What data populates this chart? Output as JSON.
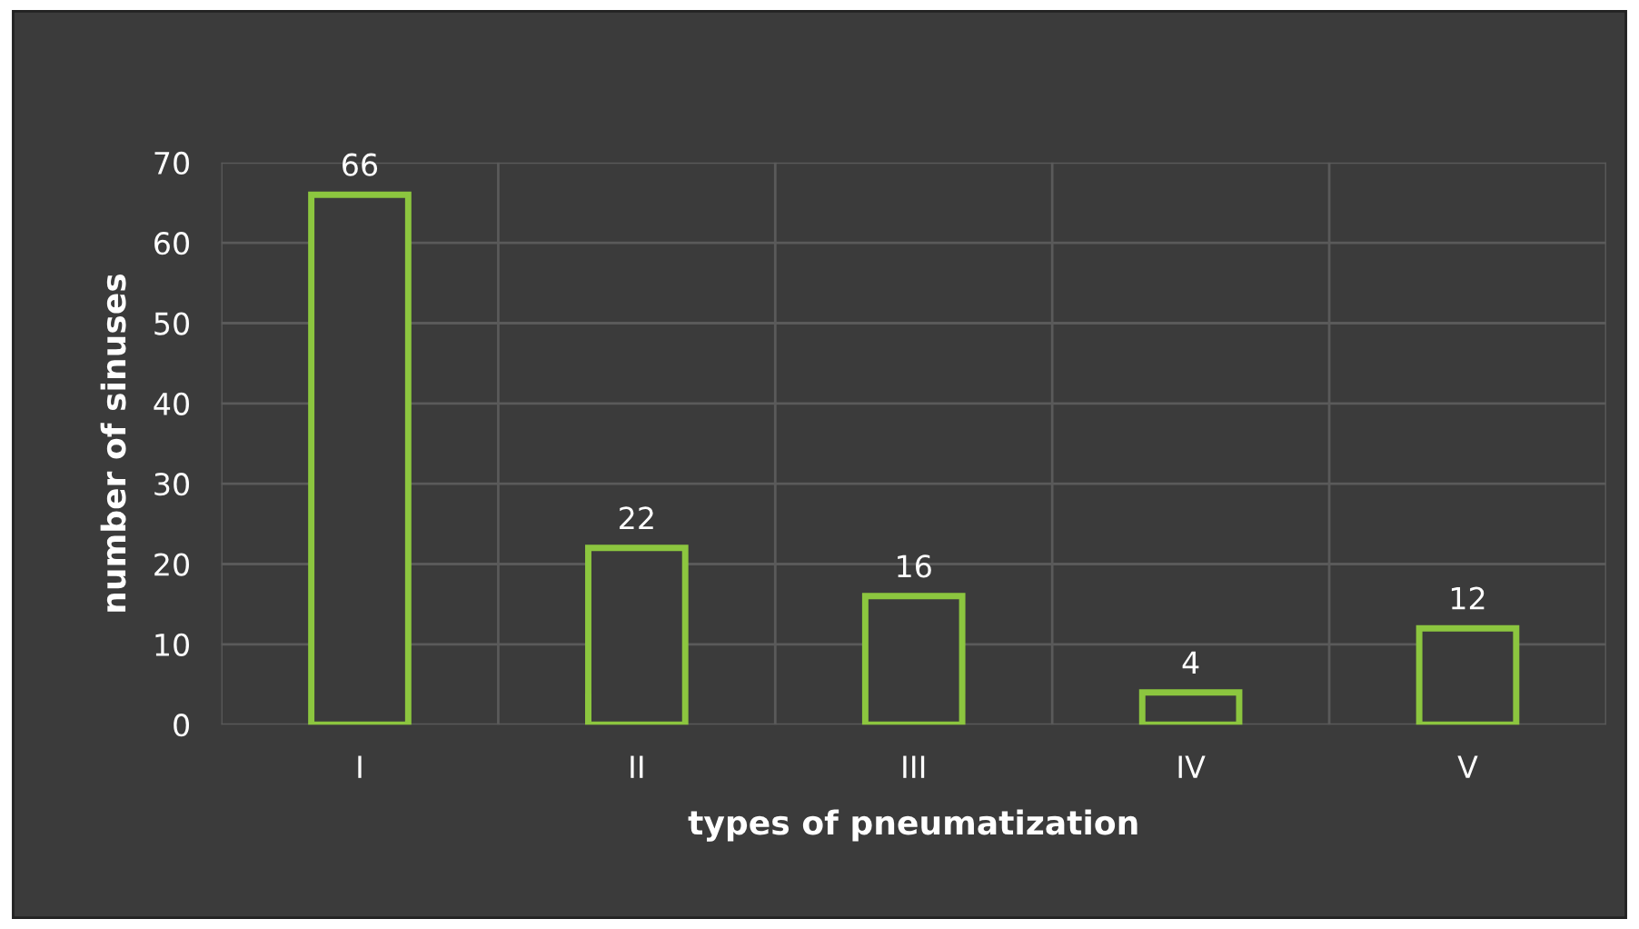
{
  "chart_data": {
    "type": "bar",
    "xlabel": "types of pneumatization",
    "ylabel": "number of sinuses",
    "categories": [
      "I",
      "II",
      "III",
      "IV",
      "V"
    ],
    "values": [
      66,
      22,
      16,
      4,
      12
    ],
    "color": "#8cc63f",
    "ylim": [
      0,
      70
    ],
    "yticks": [
      0,
      10,
      20,
      30,
      40,
      50,
      60,
      70
    ],
    "grid": true,
    "data_labels": true
  }
}
